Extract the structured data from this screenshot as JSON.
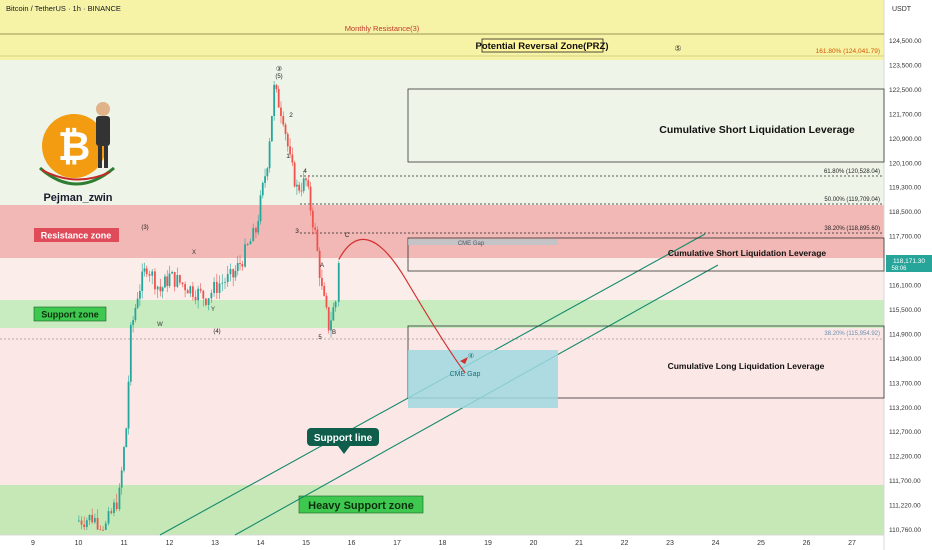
{
  "header": {
    "symbol_title": "Bitcoin / TetherUS · 1h · BINANCE",
    "currency": "USDT"
  },
  "logo": {
    "name": "Pejman_zwin"
  },
  "price_axis": {
    "labels": [
      "124,500.00",
      "123,500.00",
      "122,500.00",
      "121,700.00",
      "120,900.00",
      "120,100.00",
      "119,300.00",
      "118,500.00",
      "117,700.00",
      "116,900.00",
      "116,100.00",
      "115,500.00",
      "114,900.00",
      "114,300.00",
      "113,700.00",
      "113,200.00",
      "112,700.00",
      "112,200.00",
      "111,700.00",
      "111,220.00",
      "110,760.00"
    ],
    "current_price": "118,171.30",
    "countdown": "58:06"
  },
  "time_axis": {
    "labels": [
      "9",
      "10",
      "11",
      "12",
      "13",
      "14",
      "15",
      "16",
      "17",
      "18",
      "19",
      "20",
      "21",
      "22",
      "23",
      "24",
      "25",
      "26",
      "27"
    ]
  },
  "zones": {
    "monthly_resistance": "Monthly Resistance(3)",
    "prz": "Potential Reversal Zone(PRZ)",
    "resistance": "Resistance zone",
    "support": "Support zone",
    "heavy_support": "Heavy Support zone",
    "support_line": "Support line"
  },
  "liquidation": {
    "short_upper": "Cumulative Short Liquidation Leverage",
    "short_lower": "Cumulative Short Liquidation Leverage",
    "long": "Cumulative Long Liquidation Leverage"
  },
  "fib_levels": [
    "161.80% (124,041.79)",
    "61.80% (120,528.04)",
    "50.00% (119,709.04)",
    "38.20% (118,895.60)",
    "38.20% (115,954.92)"
  ],
  "cme_gaps": [
    "CME Gap",
    "CME Gap"
  ],
  "wave_labels": {
    "peak_top": "③",
    "peak_bottom": "(5)",
    "w2": "2",
    "w1": "1",
    "w4": "4",
    "w3": "3",
    "wa": "A",
    "wb": "B",
    "w5": "5",
    "wc": "C",
    "w_paren4": "(4)",
    "w_paren3": "(3)",
    "ww": "W",
    "wx": "X",
    "wy": "Y",
    "circ4": "④",
    "circ5": "⑤"
  },
  "colors": {
    "prz": "#f7f3a6",
    "resistance": "#f2b8b5",
    "support": "#c8ecc0",
    "heavy_support": "#c6e8b6",
    "cme_gap": "#9fd8df",
    "candle_up": "#26a69a",
    "candle_down": "#ef5350",
    "price_tag": "#26a69a",
    "forecast_arrow": "#d32f2f"
  },
  "chart_data": {
    "type": "candlestick",
    "title": "Bitcoin / TetherUS · 1h · BINANCE",
    "x_range": [
      "9",
      "27"
    ],
    "y_range": [
      110760,
      124500
    ],
    "last_price": 118171.3,
    "price_path": [
      {
        "x": 9.95,
        "y": 111000
      },
      {
        "x": 10.3,
        "y": 111100
      },
      {
        "x": 10.6,
        "y": 110850
      },
      {
        "x": 10.9,
        "y": 111700
      },
      {
        "x": 11.05,
        "y": 113500
      },
      {
        "x": 11.15,
        "y": 116100
      },
      {
        "x": 11.3,
        "y": 117200
      },
      {
        "x": 11.5,
        "y": 118000
      },
      {
        "x": 11.8,
        "y": 117300
      },
      {
        "x": 12.0,
        "y": 117700
      },
      {
        "x": 12.4,
        "y": 117400
      },
      {
        "x": 12.8,
        "y": 117100
      },
      {
        "x": 13.1,
        "y": 117500
      },
      {
        "x": 13.4,
        "y": 117700
      },
      {
        "x": 13.6,
        "y": 118200
      },
      {
        "x": 13.9,
        "y": 119000
      },
      {
        "x": 14.15,
        "y": 121000
      },
      {
        "x": 14.3,
        "y": 123100
      },
      {
        "x": 14.5,
        "y": 122300
      },
      {
        "x": 14.65,
        "y": 121000
      },
      {
        "x": 14.8,
        "y": 120200
      },
      {
        "x": 15.0,
        "y": 120400
      },
      {
        "x": 15.2,
        "y": 118900
      },
      {
        "x": 15.35,
        "y": 117300
      },
      {
        "x": 15.5,
        "y": 116300
      },
      {
        "x": 15.65,
        "y": 117000
      },
      {
        "x": 15.72,
        "y": 118171.3
      }
    ],
    "forecast_path": [
      {
        "x": 15.72,
        "y": 118171.3
      },
      {
        "x": 16.3,
        "y": 118850
      },
      {
        "x": 17.2,
        "y": 117600
      },
      {
        "x": 18.5,
        "y": 115000
      }
    ],
    "horizontal_levels": [
      {
        "label": "161.80%",
        "value": 124041.79
      },
      {
        "label": "61.80%",
        "value": 120528.04
      },
      {
        "label": "50.00%",
        "value": 119709.04
      },
      {
        "label": "38.20%",
        "value": 118895.6
      },
      {
        "label": "38.20%",
        "value": 115954.92
      }
    ],
    "zones": [
      {
        "name": "Potential Reversal Zone(PRZ)",
        "from": 123900,
        "to": 124800
      },
      {
        "name": "Resistance zone",
        "from": 118200,
        "to": 119600
      },
      {
        "name": "Support zone",
        "from": 116200,
        "to": 116900
      },
      {
        "name": "Heavy Support zone",
        "from": 110760,
        "to": 111900
      }
    ]
  }
}
